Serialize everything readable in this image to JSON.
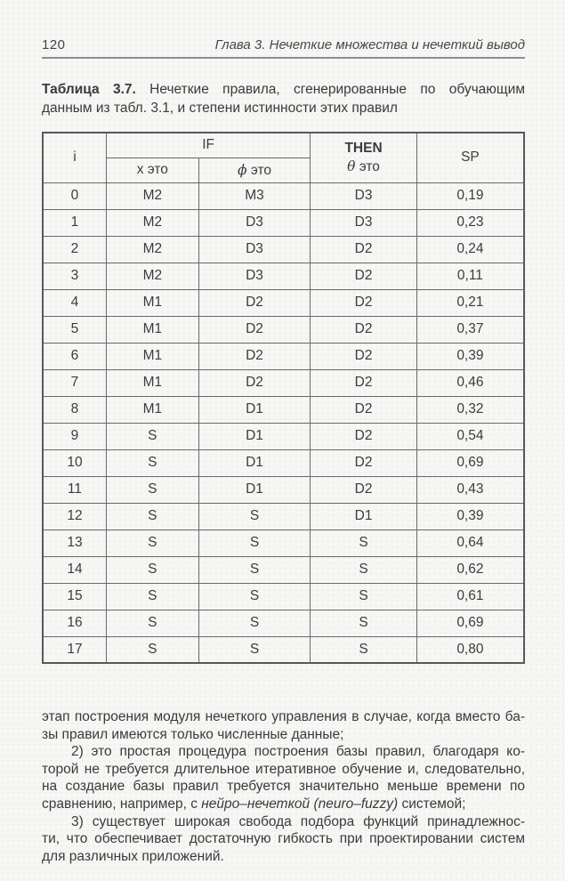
{
  "page": {
    "number": "120",
    "running_head": "Глава 3. Нечеткие множества и нечеткий вывод"
  },
  "caption": {
    "lines": [
      {
        "just": true,
        "segments": [
          {
            "t": "Таблица 3.7.",
            "b": true
          },
          {
            "t": " Нечеткие правила, сгенерированные по обучающим"
          }
        ]
      },
      {
        "segments": [
          {
            "t": "данным из табл. 3.1, и степени истинности этих правил"
          }
        ]
      }
    ]
  },
  "table": {
    "headers": {
      "i": "i",
      "if": "IF",
      "then": "THEN",
      "then_sub_symbol": "θ",
      "then_sub_word": " это",
      "x": "x это",
      "phi_symbol": "ϕ",
      "phi_word": " это",
      "sp": "SP"
    },
    "rows": [
      [
        "0",
        "M2",
        "M3",
        "D3",
        "0,19"
      ],
      [
        "1",
        "M2",
        "D3",
        "D3",
        "0,23"
      ],
      [
        "2",
        "M2",
        "D3",
        "D2",
        "0,24"
      ],
      [
        "3",
        "M2",
        "D3",
        "D2",
        "0,11"
      ],
      [
        "4",
        "M1",
        "D2",
        "D2",
        "0,21"
      ],
      [
        "5",
        "M1",
        "D2",
        "D2",
        "0,37"
      ],
      [
        "6",
        "M1",
        "D2",
        "D2",
        "0,39"
      ],
      [
        "7",
        "M1",
        "D2",
        "D2",
        "0,46"
      ],
      [
        "8",
        "M1",
        "D1",
        "D2",
        "0,32"
      ],
      [
        "9",
        "S",
        "D1",
        "D2",
        "0,54"
      ],
      [
        "10",
        "S",
        "D1",
        "D2",
        "0,69"
      ],
      [
        "11",
        "S",
        "D1",
        "D2",
        "0,43"
      ],
      [
        "12",
        "S",
        "S",
        "D1",
        "0,39"
      ],
      [
        "13",
        "S",
        "S",
        "S",
        "0,64"
      ],
      [
        "14",
        "S",
        "S",
        "S",
        "0,62"
      ],
      [
        "15",
        "S",
        "S",
        "S",
        "0,61"
      ],
      [
        "16",
        "S",
        "S",
        "S",
        "0,69"
      ],
      [
        "17",
        "S",
        "S",
        "S",
        "0,80"
      ]
    ]
  },
  "body": {
    "paragraphs": [
      {
        "lines": [
          {
            "just": true,
            "segments": [
              {
                "t": "этап построения модуля нечеткого управления в случае, когда вместо ба-"
              }
            ]
          },
          {
            "segments": [
              {
                "t": "зы правил имеются только численные данные;"
              }
            ]
          }
        ]
      },
      {
        "lines": [
          {
            "just": true,
            "indent": true,
            "segments": [
              {
                "t": "2) это простая процедура построения базы правил, благодаря ко-"
              }
            ]
          },
          {
            "just": true,
            "segments": [
              {
                "t": "торой не требуется длительное итеративное обучение и, следовательно,"
              }
            ]
          },
          {
            "just": true,
            "segments": [
              {
                "t": "на создание базы правил требуется значительно меньше времени по"
              }
            ]
          },
          {
            "segments": [
              {
                "t": "сравнению, например, с "
              },
              {
                "t": "нейро–нечеткой (neuro–fuzzy)",
                "i": true
              },
              {
                "t": " системой;"
              }
            ]
          }
        ]
      },
      {
        "lines": [
          {
            "just": true,
            "indent": true,
            "segments": [
              {
                "t": "3) существует широкая свобода подбора функций принадлежнос-"
              }
            ]
          },
          {
            "just": true,
            "segments": [
              {
                "t": "ти, что обеспечивает достаточную гибкость при проектировании систем"
              }
            ]
          },
          {
            "segments": [
              {
                "t": "для различных приложений."
              }
            ]
          }
        ]
      }
    ]
  }
}
